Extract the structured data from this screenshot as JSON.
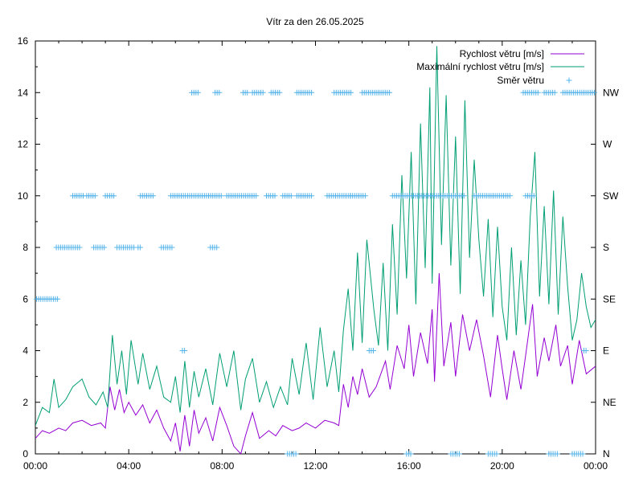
{
  "chart_data": {
    "type": "line",
    "title": "Vítr za den 26.05.2025",
    "x_ticks": [
      "00:00",
      "04:00",
      "08:00",
      "12:00",
      "16:00",
      "20:00",
      "00:00"
    ],
    "xlim_hours": [
      0,
      24
    ],
    "ylim": [
      0,
      16
    ],
    "y_ticks": [
      "0",
      "2",
      "4",
      "6",
      "8",
      "10",
      "12",
      "14",
      "16"
    ],
    "y2_ticks": [
      "N",
      "NE",
      "E",
      "SE",
      "S",
      "SW",
      "W",
      "NW"
    ],
    "legend_position": "top-right",
    "grid": false,
    "series": [
      {
        "name": "Rychlost větru [m/s]",
        "style": "line",
        "color": "#9400d3",
        "points": [
          [
            0,
            0.6
          ],
          [
            0.3,
            0.9
          ],
          [
            0.6,
            0.8
          ],
          [
            1.0,
            1.0
          ],
          [
            1.3,
            0.9
          ],
          [
            1.6,
            1.2
          ],
          [
            2.0,
            1.3
          ],
          [
            2.4,
            1.1
          ],
          [
            2.8,
            1.2
          ],
          [
            3.0,
            1.0
          ],
          [
            3.2,
            2.6
          ],
          [
            3.4,
            1.7
          ],
          [
            3.6,
            2.5
          ],
          [
            3.8,
            1.6
          ],
          [
            4.0,
            2.0
          ],
          [
            4.3,
            1.5
          ],
          [
            4.6,
            1.9
          ],
          [
            4.9,
            1.2
          ],
          [
            5.2,
            1.7
          ],
          [
            5.5,
            1.0
          ],
          [
            5.8,
            0.5
          ],
          [
            6.0,
            1.2
          ],
          [
            6.2,
            0.1
          ],
          [
            6.4,
            1.5
          ],
          [
            6.6,
            0.3
          ],
          [
            6.8,
            1.7
          ],
          [
            7.0,
            0.8
          ],
          [
            7.3,
            1.4
          ],
          [
            7.6,
            0.5
          ],
          [
            7.9,
            1.8
          ],
          [
            8.2,
            1.1
          ],
          [
            8.5,
            0.3
          ],
          [
            8.8,
            0.0
          ],
          [
            9.0,
            0.7
          ],
          [
            9.3,
            1.6
          ],
          [
            9.6,
            0.6
          ],
          [
            10.0,
            0.9
          ],
          [
            10.3,
            0.7
          ],
          [
            10.6,
            1.1
          ],
          [
            11.0,
            0.9
          ],
          [
            11.3,
            1.0
          ],
          [
            11.6,
            1.2
          ],
          [
            12.0,
            1.0
          ],
          [
            12.4,
            1.3
          ],
          [
            12.8,
            1.2
          ],
          [
            13.0,
            1.1
          ],
          [
            13.2,
            2.7
          ],
          [
            13.4,
            1.8
          ],
          [
            13.6,
            3.0
          ],
          [
            13.8,
            2.3
          ],
          [
            14.0,
            3.3
          ],
          [
            14.3,
            2.2
          ],
          [
            14.6,
            2.6
          ],
          [
            15.0,
            3.6
          ],
          [
            15.2,
            2.5
          ],
          [
            15.5,
            4.2
          ],
          [
            15.8,
            3.3
          ],
          [
            16.0,
            5.0
          ],
          [
            16.2,
            3.0
          ],
          [
            16.5,
            4.7
          ],
          [
            16.8,
            3.5
          ],
          [
            17.0,
            5.6
          ],
          [
            17.1,
            2.8
          ],
          [
            17.3,
            7.0
          ],
          [
            17.5,
            3.4
          ],
          [
            17.8,
            5.1
          ],
          [
            18.0,
            3.0
          ],
          [
            18.3,
            5.4
          ],
          [
            18.6,
            4.0
          ],
          [
            18.9,
            5.2
          ],
          [
            19.2,
            3.8
          ],
          [
            19.5,
            2.2
          ],
          [
            19.8,
            4.6
          ],
          [
            20.0,
            3.3
          ],
          [
            20.2,
            2.1
          ],
          [
            20.5,
            4.0
          ],
          [
            20.8,
            2.5
          ],
          [
            21.0,
            3.8
          ],
          [
            21.3,
            5.8
          ],
          [
            21.5,
            3.0
          ],
          [
            21.8,
            4.5
          ],
          [
            22.0,
            3.6
          ],
          [
            22.3,
            5.0
          ],
          [
            22.5,
            3.4
          ],
          [
            22.8,
            4.2
          ],
          [
            23.0,
            2.7
          ],
          [
            23.3,
            4.4
          ],
          [
            23.6,
            3.1
          ],
          [
            24.0,
            3.4
          ]
        ]
      },
      {
        "name": "Maximální rychlost větru [m/s]",
        "style": "line",
        "color": "#009e73",
        "points": [
          [
            0,
            1.1
          ],
          [
            0.3,
            1.8
          ],
          [
            0.6,
            1.6
          ],
          [
            0.8,
            2.9
          ],
          [
            1.0,
            1.8
          ],
          [
            1.3,
            2.1
          ],
          [
            1.6,
            2.6
          ],
          [
            2.0,
            2.9
          ],
          [
            2.3,
            2.2
          ],
          [
            2.6,
            1.9
          ],
          [
            2.9,
            2.4
          ],
          [
            3.1,
            1.8
          ],
          [
            3.3,
            4.6
          ],
          [
            3.5,
            2.7
          ],
          [
            3.7,
            4.0
          ],
          [
            3.9,
            2.3
          ],
          [
            4.1,
            4.4
          ],
          [
            4.4,
            2.7
          ],
          [
            4.6,
            3.9
          ],
          [
            4.9,
            2.5
          ],
          [
            5.2,
            3.4
          ],
          [
            5.5,
            2.2
          ],
          [
            5.8,
            2.0
          ],
          [
            6.0,
            3.0
          ],
          [
            6.2,
            1.6
          ],
          [
            6.4,
            3.6
          ],
          [
            6.6,
            1.8
          ],
          [
            6.8,
            3.2
          ],
          [
            7.0,
            2.2
          ],
          [
            7.3,
            3.3
          ],
          [
            7.6,
            1.9
          ],
          [
            7.9,
            3.9
          ],
          [
            8.2,
            2.6
          ],
          [
            8.5,
            4.0
          ],
          [
            8.8,
            1.7
          ],
          [
            9.0,
            2.9
          ],
          [
            9.3,
            3.7
          ],
          [
            9.6,
            2.0
          ],
          [
            9.9,
            2.8
          ],
          [
            10.2,
            1.8
          ],
          [
            10.5,
            2.6
          ],
          [
            10.8,
            1.9
          ],
          [
            11.0,
            3.7
          ],
          [
            11.3,
            2.3
          ],
          [
            11.6,
            4.3
          ],
          [
            11.9,
            2.1
          ],
          [
            12.2,
            4.9
          ],
          [
            12.5,
            2.6
          ],
          [
            12.8,
            4.0
          ],
          [
            13.0,
            2.4
          ],
          [
            13.2,
            4.8
          ],
          [
            13.4,
            6.4
          ],
          [
            13.6,
            4.0
          ],
          [
            13.8,
            7.8
          ],
          [
            14.0,
            4.3
          ],
          [
            14.2,
            8.3
          ],
          [
            14.5,
            5.6
          ],
          [
            14.7,
            4.2
          ],
          [
            14.9,
            7.4
          ],
          [
            15.1,
            4.0
          ],
          [
            15.3,
            8.9
          ],
          [
            15.5,
            5.4
          ],
          [
            15.7,
            10.8
          ],
          [
            15.9,
            6.8
          ],
          [
            16.1,
            11.7
          ],
          [
            16.3,
            5.8
          ],
          [
            16.5,
            12.8
          ],
          [
            16.7,
            7.2
          ],
          [
            16.9,
            14.2
          ],
          [
            17.0,
            6.6
          ],
          [
            17.2,
            15.8
          ],
          [
            17.4,
            8.1
          ],
          [
            17.6,
            13.9
          ],
          [
            17.8,
            7.3
          ],
          [
            18.0,
            12.3
          ],
          [
            18.2,
            6.2
          ],
          [
            18.4,
            13.7
          ],
          [
            18.6,
            7.6
          ],
          [
            18.8,
            11.4
          ],
          [
            19.0,
            8.3
          ],
          [
            19.2,
            6.1
          ],
          [
            19.4,
            9.1
          ],
          [
            19.6,
            5.3
          ],
          [
            19.8,
            8.8
          ],
          [
            20.0,
            5.7
          ],
          [
            20.2,
            4.4
          ],
          [
            20.4,
            8.0
          ],
          [
            20.6,
            4.6
          ],
          [
            20.8,
            7.5
          ],
          [
            21.0,
            5.0
          ],
          [
            21.2,
            9.2
          ],
          [
            21.4,
            11.7
          ],
          [
            21.6,
            6.1
          ],
          [
            21.8,
            9.6
          ],
          [
            22.0,
            5.8
          ],
          [
            22.2,
            10.2
          ],
          [
            22.4,
            5.4
          ],
          [
            22.6,
            9.2
          ],
          [
            22.8,
            6.5
          ],
          [
            23.0,
            4.4
          ],
          [
            23.2,
            5.2
          ],
          [
            23.4,
            7.0
          ],
          [
            23.6,
            5.7
          ],
          [
            23.8,
            4.9
          ],
          [
            24.0,
            5.2
          ]
        ]
      },
      {
        "name": "Směr větru",
        "style": "points",
        "color": "#56b4e9",
        "segments": [
          [
            0.05,
            0.95,
            6
          ],
          [
            0.9,
            1.9,
            8
          ],
          [
            1.6,
            2.05,
            10
          ],
          [
            2.2,
            2.6,
            10
          ],
          [
            2.5,
            3.0,
            8
          ],
          [
            3.0,
            3.4,
            10
          ],
          [
            3.5,
            4.3,
            8
          ],
          [
            4.4,
            4.5,
            8
          ],
          [
            4.5,
            5.1,
            10
          ],
          [
            5.4,
            5.9,
            8
          ],
          [
            5.8,
            8.0,
            10
          ],
          [
            6.3,
            6.4,
            4
          ],
          [
            6.7,
            7.0,
            14
          ],
          [
            7.5,
            7.8,
            8
          ],
          [
            7.7,
            7.9,
            14
          ],
          [
            8.2,
            9.5,
            10
          ],
          [
            8.9,
            9.1,
            14
          ],
          [
            9.3,
            9.8,
            14
          ],
          [
            9.9,
            10.3,
            10
          ],
          [
            10.1,
            10.5,
            14
          ],
          [
            10.6,
            11.0,
            10
          ],
          [
            10.8,
            11.2,
            0
          ],
          [
            11.2,
            11.9,
            10
          ],
          [
            11.2,
            11.9,
            14
          ],
          [
            12.5,
            13.5,
            10
          ],
          [
            12.8,
            13.6,
            14
          ],
          [
            13.5,
            14.2,
            10
          ],
          [
            14.0,
            15.2,
            14
          ],
          [
            14.3,
            14.5,
            4
          ],
          [
            15.3,
            18.4,
            10
          ],
          [
            15.9,
            16.1,
            0
          ],
          [
            17.8,
            18.2,
            0
          ],
          [
            18.8,
            20.4,
            10
          ],
          [
            19.4,
            19.8,
            0
          ],
          [
            20.9,
            21.6,
            14
          ],
          [
            21.0,
            21.4,
            10
          ],
          [
            21.8,
            22.3,
            14
          ],
          [
            22.0,
            22.4,
            0
          ],
          [
            22.6,
            24.0,
            14
          ],
          [
            23.0,
            23.5,
            0
          ],
          [
            23.5,
            23.6,
            4
          ]
        ]
      }
    ]
  }
}
